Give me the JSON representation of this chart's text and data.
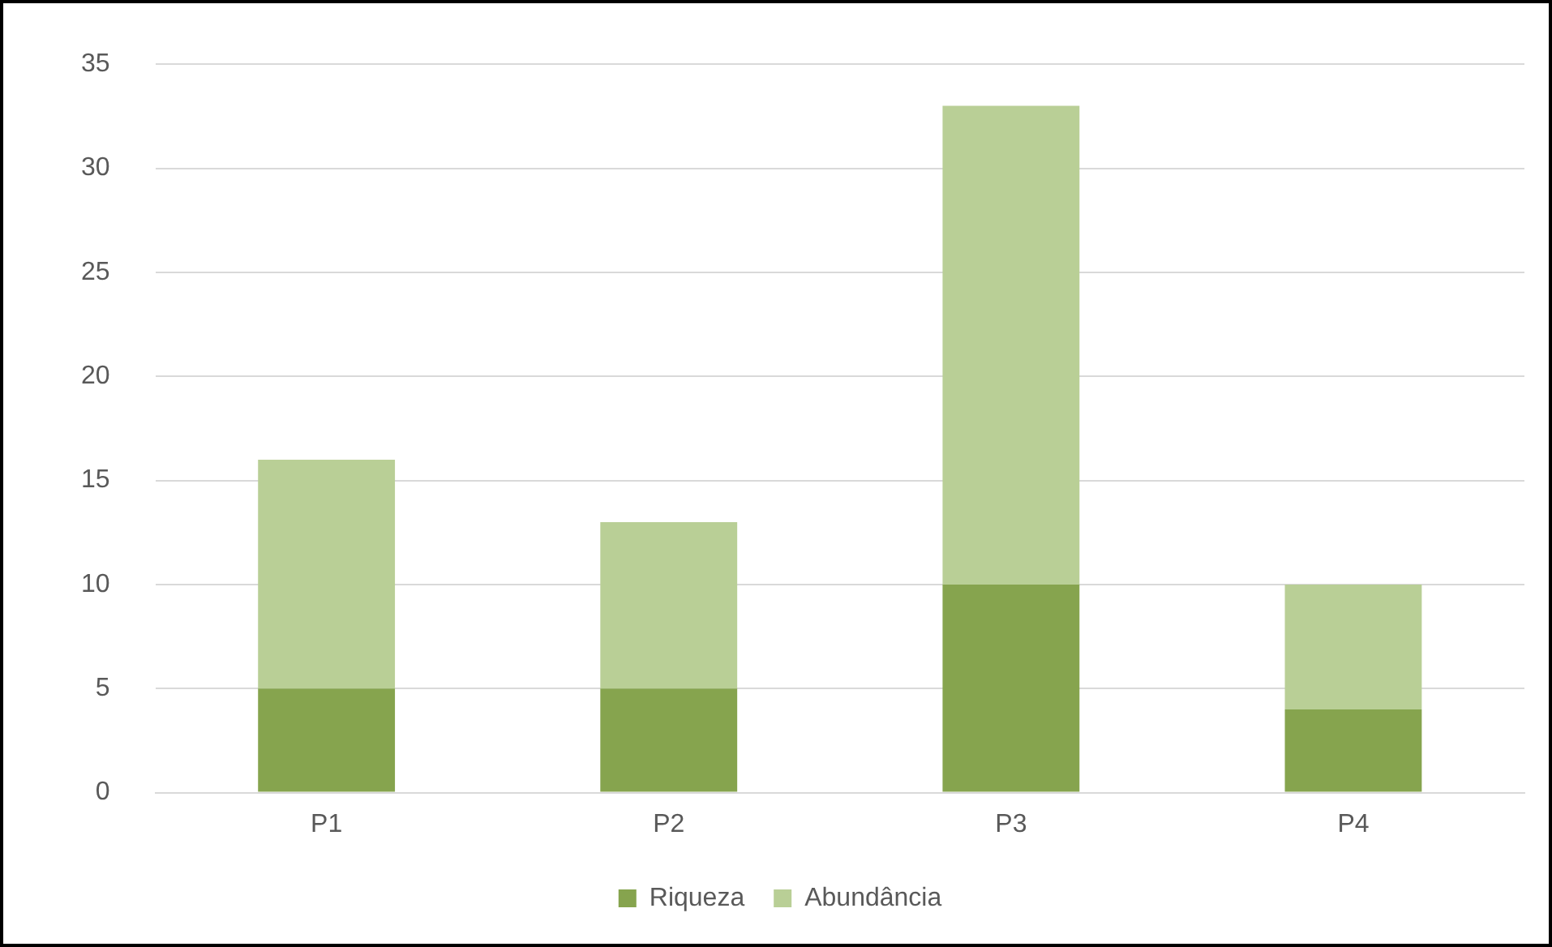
{
  "chart_data": {
    "type": "bar",
    "stacked": true,
    "categories": [
      "P1",
      "P2",
      "P3",
      "P4"
    ],
    "series": [
      {
        "name": "Riqueza",
        "color": "#86a44e",
        "values": [
          5,
          5,
          10,
          4
        ]
      },
      {
        "name": "Abundância",
        "color": "#b9cf96",
        "values": [
          11,
          8,
          23,
          6
        ]
      }
    ],
    "ylim": [
      0,
      35
    ],
    "yticks": [
      0,
      5,
      10,
      15,
      20,
      25,
      30,
      35
    ],
    "grid": "y",
    "legend": "bottom"
  }
}
